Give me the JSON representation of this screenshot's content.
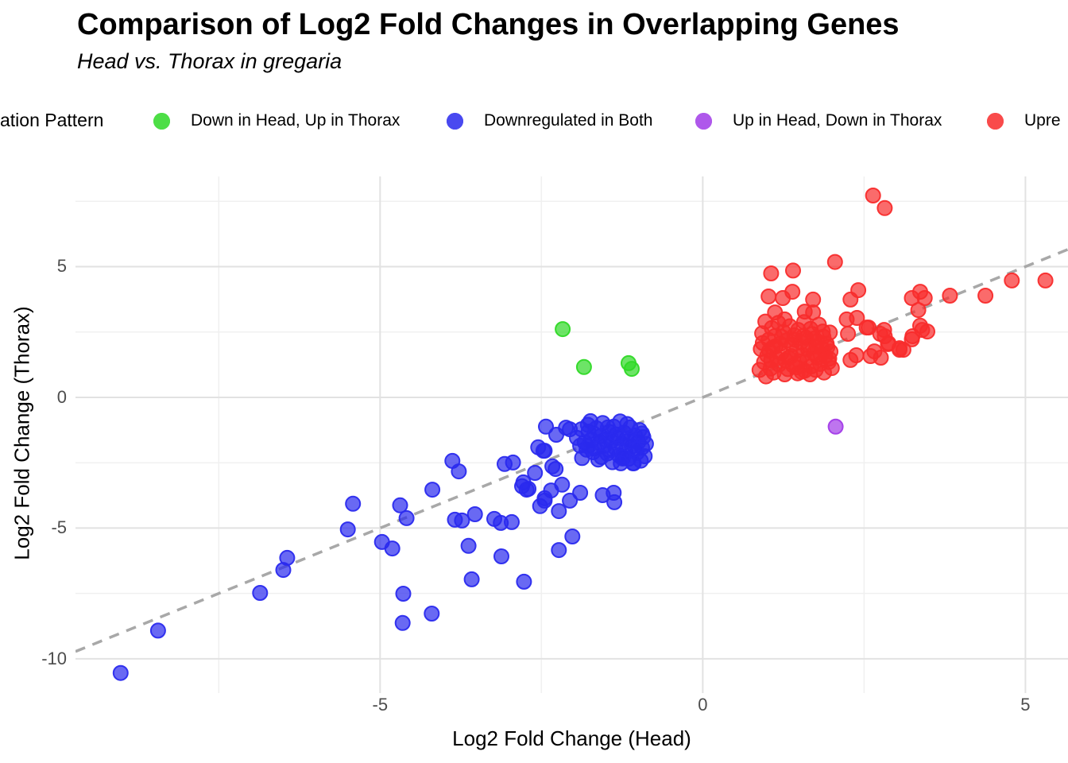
{
  "header": {
    "title": "Comparison of Log2 Fold Changes in Overlapping Genes",
    "subtitle": "Head vs. Thorax in gregaria"
  },
  "legend": {
    "title": "ation Pattern",
    "items": [
      {
        "label": "Down in Head, Up in Thorax",
        "color": "#2fd926"
      },
      {
        "label": "Downregulated in Both",
        "color": "#2a2aee"
      },
      {
        "label": "Up in Head, Down in Thorax",
        "color": "#a23be8"
      },
      {
        "label": "Upre",
        "color": "#f82c2c"
      }
    ]
  },
  "colors": {
    "grid_major": "#e2e2e2",
    "grid_minor": "#f0f0f0",
    "identity_line": "#a8a8a8",
    "tick_text": "#4d4d4d",
    "background": "#ffffff"
  },
  "chart_data": {
    "type": "scatter",
    "title": "Comparison of Log2 Fold Changes in Overlapping Genes",
    "subtitle": "Head vs. Thorax in gregaria",
    "xlabel": "Log2 Fold Change (Head)",
    "ylabel": "Log2 Fold Change (Thorax)",
    "xlim": [
      -9.72,
      5.66
    ],
    "ylim": [
      -11.31,
      8.45
    ],
    "x_ticks": [
      -5,
      0,
      5
    ],
    "y_ticks": [
      -10,
      -5,
      0,
      5
    ],
    "x_minor_ticks": [
      -7.5,
      -2.5,
      2.5
    ],
    "y_minor_ticks": [
      -7.5,
      -2.5,
      2.5,
      7.5
    ],
    "grid": true,
    "legend_position": "top",
    "identity_line": {
      "show": true,
      "slope": 1,
      "intercept": 0,
      "style": "dashed"
    },
    "point_radius": 9,
    "series": [
      {
        "name": "Down in Head, Up in Thorax",
        "color": "#2fd926",
        "points": [
          [
            -2.17,
            2.61
          ],
          [
            -1.84,
            1.16
          ],
          [
            -1.15,
            1.31
          ],
          [
            -1.1,
            1.09
          ]
        ]
      },
      {
        "name": "Downregulated in Both",
        "color": "#2a2aee",
        "points": [
          [
            -9.02,
            -10.54
          ],
          [
            -8.44,
            -8.92
          ],
          [
            -6.86,
            -7.48
          ],
          [
            -6.5,
            -6.6
          ],
          [
            -6.44,
            -6.14
          ],
          [
            -5.5,
            -5.05
          ],
          [
            -5.42,
            -4.07
          ],
          [
            -4.97,
            -5.53
          ],
          [
            -4.81,
            -5.78
          ],
          [
            -4.69,
            -4.13
          ],
          [
            -4.59,
            -4.62
          ],
          [
            -4.64,
            -7.51
          ],
          [
            -4.65,
            -8.63
          ],
          [
            -4.2,
            -8.27
          ],
          [
            -4.19,
            -3.53
          ],
          [
            -3.88,
            -2.43
          ],
          [
            -3.78,
            -2.83
          ],
          [
            -3.84,
            -4.68
          ],
          [
            -3.73,
            -4.71
          ],
          [
            -3.63,
            -5.68
          ],
          [
            -3.58,
            -6.96
          ],
          [
            -3.53,
            -4.47
          ],
          [
            -3.23,
            -4.65
          ],
          [
            -3.13,
            -4.8
          ],
          [
            -2.96,
            -4.77
          ],
          [
            -3.12,
            -6.08
          ],
          [
            -2.77,
            -7.05
          ],
          [
            -2.8,
            -3.4
          ],
          [
            -2.73,
            -3.53
          ],
          [
            -3.07,
            -2.55
          ],
          [
            -2.94,
            -2.49
          ],
          [
            -2.55,
            -1.91
          ],
          [
            -2.45,
            -2.04
          ],
          [
            -2.52,
            -4.16
          ],
          [
            -2.45,
            -3.95
          ],
          [
            -2.28,
            -2.74
          ],
          [
            -2.23,
            -5.84
          ],
          [
            -2.43,
            -1.12
          ],
          [
            -2.12,
            -1.16
          ],
          [
            -2.06,
            -1.22
          ],
          [
            -2.27,
            -1.43
          ],
          [
            -2.47,
            -2.04
          ],
          [
            -2.6,
            -2.89
          ],
          [
            -2.78,
            -3.25
          ],
          [
            -2.7,
            -3.5
          ],
          [
            -2.33,
            -2.64
          ],
          [
            -2.35,
            -3.56
          ],
          [
            -2.45,
            -3.86
          ],
          [
            -2.18,
            -3.34
          ],
          [
            -2.23,
            -4.35
          ],
          [
            -2.06,
            -3.95
          ],
          [
            -1.9,
            -3.65
          ],
          [
            -1.55,
            -3.74
          ],
          [
            -1.38,
            -3.65
          ],
          [
            -1.37,
            -4.01
          ],
          [
            -2.02,
            -5.32
          ],
          [
            -1.74,
            -0.91
          ],
          [
            -1.77,
            -1.31
          ],
          [
            -1.24,
            -2.34
          ],
          [
            -1.07,
            -2.52
          ],
          [
            -1.95,
            -1.55
          ],
          [
            -1.88,
            -1.22
          ],
          [
            -1.83,
            -1.72
          ],
          [
            -1.78,
            -1.05
          ],
          [
            -1.72,
            -1.62
          ],
          [
            -1.68,
            -1.95
          ],
          [
            -1.65,
            -1.18
          ],
          [
            -1.62,
            -2.38
          ],
          [
            -1.58,
            -1.48
          ],
          [
            -1.55,
            -0.98
          ],
          [
            -1.52,
            -1.85
          ],
          [
            -1.48,
            -2.15
          ],
          [
            -1.45,
            -1.32
          ],
          [
            -1.42,
            -1.68
          ],
          [
            -1.4,
            -2.48
          ],
          [
            -1.38,
            -1.12
          ],
          [
            -1.35,
            -1.95
          ],
          [
            -1.32,
            -1.55
          ],
          [
            -1.3,
            -2.22
          ],
          [
            -1.28,
            -0.92
          ],
          [
            -1.25,
            -1.78
          ],
          [
            -1.22,
            -1.35
          ],
          [
            -1.2,
            -2.05
          ],
          [
            -1.18,
            -1.58
          ],
          [
            -1.15,
            -2.35
          ],
          [
            -1.12,
            -1.15
          ],
          [
            -1.1,
            -1.88
          ],
          [
            -1.08,
            -2.52
          ],
          [
            -1.05,
            -1.45
          ],
          [
            -1.02,
            -2.12
          ],
          [
            -1.0,
            -1.72
          ],
          [
            -0.98,
            -1.25
          ],
          [
            -0.96,
            -2.42
          ],
          [
            -0.94,
            -1.92
          ],
          [
            -0.92,
            -1.52
          ],
          [
            -0.9,
            -2.25
          ],
          [
            -0.88,
            -1.78
          ],
          [
            -1.5,
            -1.62
          ],
          [
            -1.6,
            -1.75
          ],
          [
            -1.7,
            -2.1
          ],
          [
            -1.8,
            -2.0
          ],
          [
            -1.9,
            -1.85
          ],
          [
            -1.44,
            -2.02
          ],
          [
            -1.34,
            -1.42
          ],
          [
            -1.24,
            -2.28
          ],
          [
            -1.14,
            -1.65
          ],
          [
            -1.04,
            -1.98
          ],
          [
            -0.94,
            -1.38
          ],
          [
            -1.47,
            -1.15
          ],
          [
            -1.57,
            -2.28
          ],
          [
            -1.67,
            -1.42
          ],
          [
            -1.77,
            -1.88
          ],
          [
            -1.87,
            -2.32
          ],
          [
            -1.27,
            -2.52
          ],
          [
            -1.17,
            -1.02
          ]
        ]
      },
      {
        "name": "Up in Head, Down in Thorax",
        "color": "#a23be8",
        "points": [
          [
            2.06,
            -1.12
          ]
        ]
      },
      {
        "name": "Upre",
        "color": "#f82c2c",
        "points": [
          [
            1.06,
            4.74
          ],
          [
            1.4,
            4.85
          ],
          [
            2.05,
            5.18
          ],
          [
            1.02,
            3.86
          ],
          [
            1.24,
            3.8
          ],
          [
            1.39,
            4.04
          ],
          [
            1.71,
            3.74
          ],
          [
            2.29,
            3.74
          ],
          [
            2.41,
            4.1
          ],
          [
            3.24,
            3.8
          ],
          [
            1.12,
            3.25
          ],
          [
            1.27,
            2.98
          ],
          [
            1.58,
            3.28
          ],
          [
            1.71,
            3.25
          ],
          [
            2.23,
            2.98
          ],
          [
            2.39,
            3.04
          ],
          [
            2.57,
            2.67
          ],
          [
            2.75,
            2.43
          ],
          [
            2.87,
            2.04
          ],
          [
            3.05,
            1.82
          ],
          [
            3.24,
            2.22
          ],
          [
            3.37,
            2.74
          ],
          [
            2.38,
            1.61
          ],
          [
            2.6,
            1.58
          ],
          [
            2.64,
            7.72
          ],
          [
            2.82,
            7.24
          ],
          [
            3.37,
            4.04
          ],
          [
            3.44,
            3.8
          ],
          [
            3.34,
            3.34
          ],
          [
            3.83,
            3.89
          ],
          [
            4.38,
            3.89
          ],
          [
            4.79,
            4.47
          ],
          [
            3.4,
            2.58
          ],
          [
            3.48,
            2.52
          ],
          [
            3.25,
            2.34
          ],
          [
            2.81,
            2.58
          ],
          [
            2.82,
            2.34
          ],
          [
            2.88,
            2.07
          ],
          [
            2.54,
            2.67
          ],
          [
            3.05,
            1.88
          ],
          [
            3.11,
            1.82
          ],
          [
            2.66,
            1.76
          ],
          [
            2.76,
            1.52
          ],
          [
            2.25,
            2.43
          ],
          [
            2.29,
            1.43
          ],
          [
            5.31,
            4.47
          ],
          [
            0.88,
            1.05
          ],
          [
            0.9,
            1.85
          ],
          [
            0.92,
            2.45
          ],
          [
            0.95,
            1.35
          ],
          [
            0.97,
            2.9
          ],
          [
            0.98,
            0.8
          ],
          [
            1.0,
            1.6
          ],
          [
            1.02,
            2.2
          ],
          [
            1.05,
            1.1
          ],
          [
            1.07,
            2.65
          ],
          [
            1.08,
            1.9
          ],
          [
            1.1,
            0.95
          ],
          [
            1.12,
            2.35
          ],
          [
            1.15,
            1.5
          ],
          [
            1.17,
            2.85
          ],
          [
            1.18,
            1.25
          ],
          [
            1.2,
            2.05
          ],
          [
            1.22,
            1.7
          ],
          [
            1.25,
            2.5
          ],
          [
            1.27,
            0.88
          ],
          [
            1.28,
            1.42
          ],
          [
            1.3,
            2.18
          ],
          [
            1.32,
            1.08
          ],
          [
            1.35,
            2.72
          ],
          [
            1.37,
            1.58
          ],
          [
            1.38,
            2.02
          ],
          [
            1.4,
            1.22
          ],
          [
            1.42,
            2.38
          ],
          [
            1.45,
            1.78
          ],
          [
            1.47,
            0.92
          ],
          [
            1.48,
            2.58
          ],
          [
            1.5,
            1.38
          ],
          [
            1.52,
            2.1
          ],
          [
            1.55,
            1.62
          ],
          [
            1.57,
            2.88
          ],
          [
            1.58,
            1.02
          ],
          [
            1.6,
            2.28
          ],
          [
            1.62,
            1.48
          ],
          [
            1.65,
            1.98
          ],
          [
            1.67,
            2.62
          ],
          [
            1.68,
            1.18
          ],
          [
            1.7,
            2.42
          ],
          [
            1.72,
            1.68
          ],
          [
            1.75,
            1.05
          ],
          [
            1.77,
            2.15
          ],
          [
            1.78,
            1.52
          ],
          [
            1.8,
            2.78
          ],
          [
            1.82,
            1.28
          ],
          [
            1.85,
            1.88
          ],
          [
            1.87,
            2.32
          ],
          [
            1.88,
            0.95
          ],
          [
            1.9,
            1.58
          ],
          [
            1.92,
            2.05
          ],
          [
            1.95,
            1.35
          ],
          [
            1.97,
            2.48
          ],
          [
            1.98,
            1.75
          ],
          [
            2.0,
            1.12
          ],
          [
            1.13,
            1.95
          ],
          [
            1.23,
            2.3
          ],
          [
            1.33,
            1.52
          ],
          [
            1.43,
            2.2
          ],
          [
            1.53,
            0.98
          ],
          [
            1.63,
            1.85
          ],
          [
            1.73,
            2.25
          ],
          [
            1.83,
            1.62
          ],
          [
            1.93,
            1.92
          ],
          [
            1.03,
            1.78
          ],
          [
            0.93,
            2.08
          ],
          [
            1.46,
            1.15
          ],
          [
            1.56,
            2.35
          ],
          [
            1.66,
            0.88
          ],
          [
            1.76,
            1.95
          ],
          [
            1.86,
            2.52
          ],
          [
            1.96,
            1.48
          ],
          [
            1.06,
            1.42
          ]
        ]
      }
    ]
  }
}
